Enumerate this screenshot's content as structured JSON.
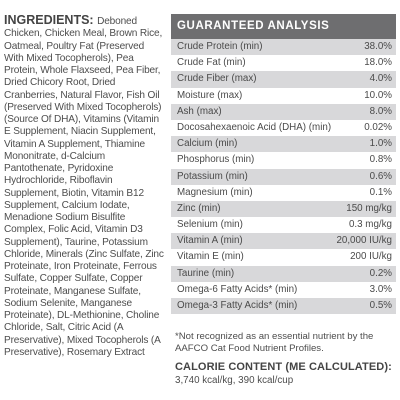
{
  "ingredients": {
    "label": "INGREDIENTS:",
    "text": "Deboned Chicken, Chicken Meal, Brown Rice, Oatmeal, Poultry Fat (Preserved With Mixed Tocopherols), Pea Protein, Whole Flaxseed, Pea Fiber, Dried Chicory Root, Dried Cranberries, Natural Flavor, Fish Oil (Preserved With Mixed Tocopherols) (Source Of DHA), Vitamins (Vitamin E Supplement, Niacin Supplement, Vitamin A Supplement, Thiamine Mononitrate, d-Calcium Pantothenate, Pyridoxine Hydrochloride, Riboflavin Supplement, Biotin, Vitamin B12 Supplement, Calcium Iodate, Menadione Sodium Bisulfite Complex, Folic Acid, Vitamin D3 Supplement), Taurine, Potassium Chloride, Minerals (Zinc Sulfate, Zinc Proteinate, Iron Proteinate, Ferrous Sulfate, Copper Sulfate, Copper Proteinate, Manganese Sulfate, Sodium Selenite, Manganese Proteinate), DL-Methionine, Choline Chloride, Salt, Citric Acid (A Preservative), Mixed Tocopherols (A Preservative), Rosemary Extract"
  },
  "analysis": {
    "title": "GUARANTEED ANALYSIS",
    "rows": [
      {
        "name": "Crude Protein (min)",
        "value": "38.0%"
      },
      {
        "name": "Crude Fat (min)",
        "value": "18.0%"
      },
      {
        "name": "Crude Fiber (max)",
        "value": "4.0%"
      },
      {
        "name": "Moisture (max)",
        "value": "10.0%"
      },
      {
        "name": "Ash (max)",
        "value": "8.0%"
      },
      {
        "name": "Docosahexaenoic Acid (DHA) (min)",
        "value": "0.02%"
      },
      {
        "name": "Calcium (min)",
        "value": "1.0%"
      },
      {
        "name": "Phosphorus (min)",
        "value": "0.8%"
      },
      {
        "name": "Potassium (min)",
        "value": "0.6%"
      },
      {
        "name": "Magnesium (min)",
        "value": "0.1%"
      },
      {
        "name": "Zinc (min)",
        "value": "150 mg/kg"
      },
      {
        "name": "Selenium (min)",
        "value": "0.3 mg/kg"
      },
      {
        "name": "Vitamin A (min)",
        "value": "20,000 IU/kg"
      },
      {
        "name": "Vitamin E (min)",
        "value": "200 IU/kg"
      },
      {
        "name": "Taurine (min)",
        "value": "0.2%"
      },
      {
        "name": "Omega-6 Fatty Acids* (min)",
        "value": "3.0%"
      },
      {
        "name": "Omega-3 Fatty Acids* (min)",
        "value": "0.5%"
      }
    ]
  },
  "footnote": "*Not recognized as an essential nutrient by the AAFCO Cat Food Nutrient Profiles.",
  "calorie": {
    "title": "CALORIE CONTENT (ME CALCULATED):",
    "value": "3,740 kcal/kg, 390 kcal/cup"
  }
}
